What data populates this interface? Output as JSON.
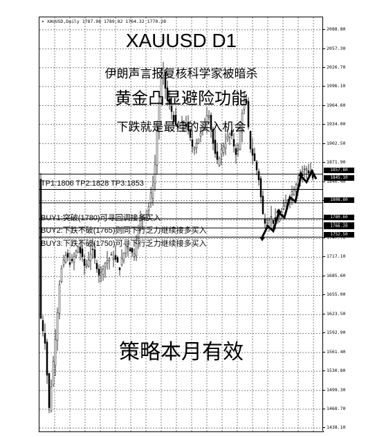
{
  "symbol_header": "XAUUSD,Daily  1787.96 1789.82 1764.32 1770.28",
  "title": "XAUUSD D1",
  "headline1": "伊朗声言报复核科学家被暗杀",
  "headline2": "黄金凸显避险功能",
  "headline3": "下跌就是最佳的买入机会",
  "targets": "TP1:1806 TP2:1828 TP3:1853",
  "buy1": "BUY1:突破(1780)可寻回调接多买入",
  "buy2": "BUY2:下跌不破(1765)则同下行乏力继续接多买入",
  "buy3": "BUY3:下跌不破(1750)可寻下行乏力继续接多买入",
  "footer": "策略本月有效",
  "price_axis": [
    "2088.80",
    "2057.30",
    "2026.70",
    "1996.10",
    "1964.60",
    "1934.00",
    "1902.50",
    "1871.90",
    "1840.40",
    "1809.80",
    "1778.30",
    "1747.70",
    "1717.10",
    "1685.60",
    "1655.00",
    "1623.50",
    "1592.90",
    "1561.40",
    "1530.80",
    "1499.30",
    "1468.70",
    "1438.10"
  ],
  "axis_boxes": [
    "1857.80",
    "1845.10",
    "1808.80",
    "1780.60",
    "1768.70",
    "1766.20",
    "1752.50"
  ],
  "colors": {
    "background": "#ffffff",
    "candles": "#000000",
    "grid": "#000000",
    "lines": "#000000"
  },
  "chart_data": {
    "type": "candlestick",
    "title": "XAUUSD D1",
    "ylim": [
      1438.1,
      2088.8
    ],
    "hlines": [
      1853,
      1828,
      1806,
      1780,
      1765,
      1750
    ]
  }
}
